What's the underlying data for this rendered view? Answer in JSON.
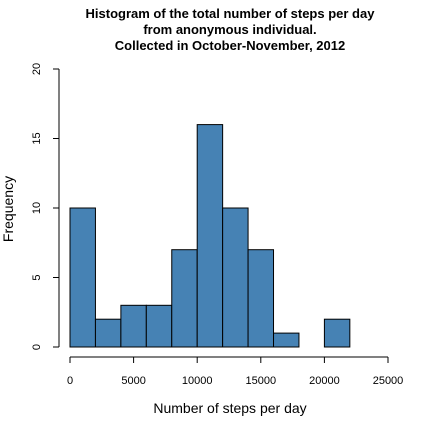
{
  "chart_data": {
    "type": "bar",
    "title_lines": [
      "Histogram of the total number of steps per day",
      "from anonymous individual.",
      "Collected in October-November, 2012"
    ],
    "xlabel": "Number of steps per day",
    "ylabel": "Frequency",
    "bin_edges": [
      0,
      2000,
      4000,
      6000,
      8000,
      10000,
      12000,
      14000,
      16000,
      18000,
      20000,
      22000
    ],
    "values": [
      10,
      2,
      3,
      3,
      7,
      16,
      10,
      7,
      1,
      0,
      2
    ],
    "xlim": [
      0,
      25000
    ],
    "ylim": [
      0,
      20
    ],
    "x_ticks": [
      0,
      5000,
      10000,
      15000,
      20000,
      25000
    ],
    "x_tick_labels": [
      "0",
      "5000",
      "10000",
      "15000",
      "20000",
      "25000"
    ],
    "y_ticks": [
      0,
      5,
      10,
      15,
      20
    ],
    "y_tick_labels": [
      "0",
      "5",
      "10",
      "15",
      "20"
    ],
    "bar_color": "#4682b4",
    "grid": false,
    "legend": "none"
  }
}
